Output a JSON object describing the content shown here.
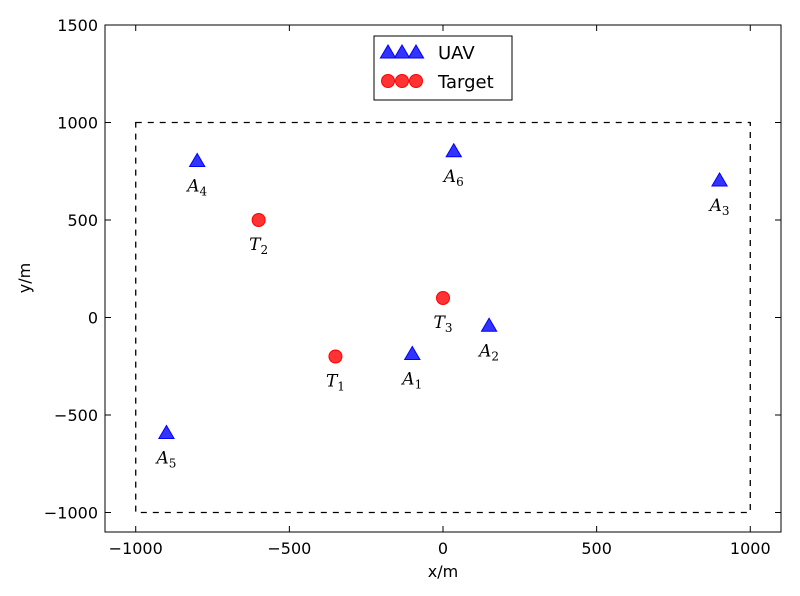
{
  "chart_data": {
    "type": "scatter",
    "title": "",
    "xlabel": "x/m",
    "ylabel": "y/m",
    "xlim": [
      -1100,
      1100
    ],
    "ylim": [
      -1100,
      1500
    ],
    "xticks": [
      -1000,
      -500,
      0,
      500,
      1000
    ],
    "yticks": [
      -1000,
      -500,
      0,
      500,
      1000,
      1500
    ],
    "xtick_labels": [
      "−1000",
      "−500",
      "0",
      "500",
      "1000"
    ],
    "ytick_labels": [
      "−1000",
      "−500",
      "0",
      "500",
      "1000",
      "1500"
    ],
    "grid": false,
    "legend_position": "top-center",
    "region": {
      "x": [
        -1000,
        1000
      ],
      "y": [
        -1000,
        1000
      ],
      "style": "dashed"
    },
    "series": [
      {
        "name": "UAV",
        "marker": "triangle",
        "color": "#0000ff",
        "points": [
          {
            "label": "A",
            "sub": "1",
            "x": -100,
            "y": -190
          },
          {
            "label": "A",
            "sub": "2",
            "x": 150,
            "y": -45
          },
          {
            "label": "A",
            "sub": "3",
            "x": 900,
            "y": 700
          },
          {
            "label": "A",
            "sub": "4",
            "x": -800,
            "y": 800
          },
          {
            "label": "A",
            "sub": "5",
            "x": -900,
            "y": -595
          },
          {
            "label": "A",
            "sub": "6",
            "x": 35,
            "y": 850
          }
        ]
      },
      {
        "name": "Target",
        "marker": "circle",
        "color": "#ff0000",
        "points": [
          {
            "label": "T",
            "sub": "1",
            "x": -350,
            "y": -200
          },
          {
            "label": "T",
            "sub": "2",
            "x": -600,
            "y": 500
          },
          {
            "label": "T",
            "sub": "3",
            "x": 0,
            "y": 100
          }
        ]
      }
    ]
  }
}
